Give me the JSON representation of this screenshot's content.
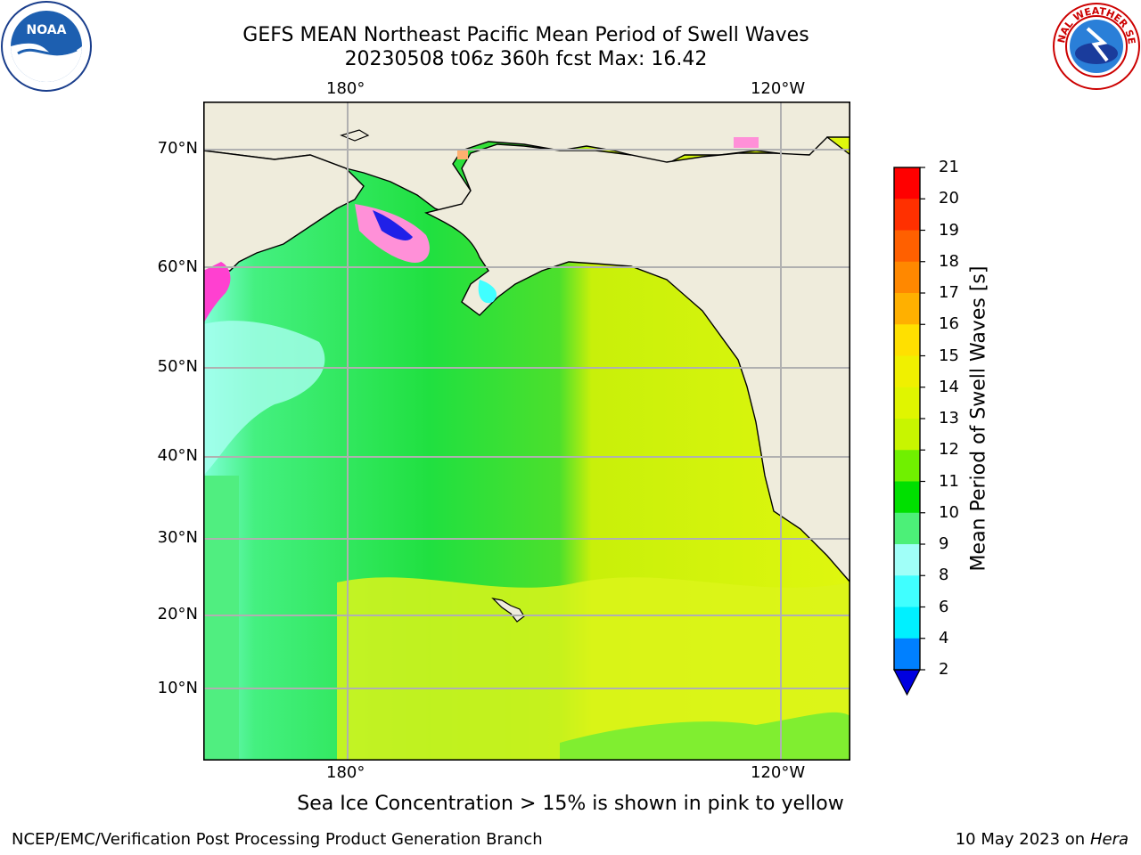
{
  "title": {
    "line1": "GEFS MEAN Northeast Pacific Mean Period of Swell Waves",
    "line2": "20230508 t06z 360h fcst   Max: 16.42"
  },
  "map": {
    "lon_labels_top": [
      "180°",
      "120°W"
    ],
    "lon_labels_bottom": [
      "180°",
      "120°W"
    ],
    "lat_labels": [
      "70°N",
      "60°N",
      "50°N",
      "40°N",
      "30°N",
      "20°N",
      "10°N"
    ],
    "colors": {
      "land": "#efecdc",
      "ocean_green": "#2ee85c",
      "ocean_yellow": "#dcf51a",
      "ice_pink": "#ff80d0"
    }
  },
  "colorbar": {
    "title": "Mean Period of Swell Waves [s]",
    "ticks": [
      "21",
      "20",
      "19",
      "18",
      "17",
      "16",
      "15",
      "14",
      "13",
      "12",
      "11",
      "10",
      "9",
      "8",
      "6",
      "4",
      "2"
    ],
    "colors": [
      "#ff0000",
      "#ff3000",
      "#ff6000",
      "#ff8800",
      "#ffb000",
      "#ffe000",
      "#f0f000",
      "#e0f500",
      "#c8f500",
      "#70f000",
      "#00e000",
      "#4cf078",
      "#a0fff8",
      "#40ffff",
      "#00f0ff",
      "#0080ff",
      "#0000e0"
    ]
  },
  "note": "Sea Ice Concentration > 15% is shown in pink to yellow",
  "footer": {
    "left": "NCEP/EMC/Verification Post Processing Product Generation Branch",
    "right_date": "10 May 2023 on",
    "right_host": "Hera"
  },
  "logos": {
    "noaa": "NOAA",
    "nws": "NATIONAL WEATHER SERVICE"
  }
}
